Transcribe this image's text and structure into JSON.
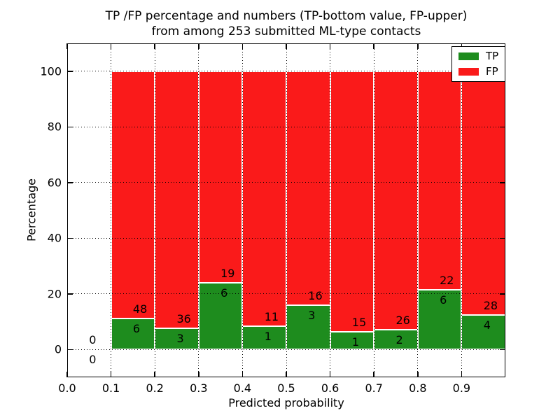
{
  "figure": {
    "title_line1": "TP /FP percentage and numbers (TP-bottom value, FP-upper)",
    "title_line2": "from among 253 submitted ML-type contacts",
    "xlabel": "Predicted probability",
    "ylabel": "Percentage"
  },
  "legend": {
    "position": "upper-right",
    "items": [
      {
        "label": "TP",
        "color": "#1e8c1e"
      },
      {
        "label": "FP",
        "color": "#fa1a1a"
      }
    ]
  },
  "colors": {
    "tp": "#1e8c1e",
    "fp": "#fa1a1a",
    "bar_edge": "#ffffff",
    "grid": "#000000",
    "background": "#ffffff"
  },
  "chart_data": {
    "type": "bar",
    "stacked": true,
    "normalized_to": 100,
    "title": "TP /FP percentage and numbers (TP-bottom value, FP-upper) from among 253 submitted ML-type contacts",
    "xlabel": "Predicted probability",
    "ylabel": "Percentage",
    "total_contacts": 253,
    "xlim": [
      0.0,
      1.0
    ],
    "ylim": [
      -10,
      110
    ],
    "xticks": [
      "0.0",
      "0.1",
      "0.2",
      "0.3",
      "0.4",
      "0.5",
      "0.6",
      "0.7",
      "0.8",
      "0.9"
    ],
    "yticks": [
      0,
      20,
      40,
      60,
      80,
      100
    ],
    "grid": true,
    "grid_style": "dotted-black-over-bars",
    "legend_position": "upper-right",
    "bins": [
      {
        "x0": 0.0,
        "x1": 0.1,
        "tp_count": 0,
        "fp_count": 0,
        "tp_pct": 0,
        "fp_pct": 0,
        "has_bar": false
      },
      {
        "x0": 0.1,
        "x1": 0.2,
        "tp_count": 6,
        "fp_count": 48,
        "tp_pct": 11.11,
        "fp_pct": 88.89,
        "has_bar": true
      },
      {
        "x0": 0.2,
        "x1": 0.3,
        "tp_count": 3,
        "fp_count": 36,
        "tp_pct": 7.69,
        "fp_pct": 92.31,
        "has_bar": true
      },
      {
        "x0": 0.3,
        "x1": 0.4,
        "tp_count": 6,
        "fp_count": 19,
        "tp_pct": 24.0,
        "fp_pct": 76.0,
        "has_bar": true
      },
      {
        "x0": 0.4,
        "x1": 0.5,
        "tp_count": 1,
        "fp_count": 11,
        "tp_pct": 8.33,
        "fp_pct": 91.67,
        "has_bar": true
      },
      {
        "x0": 0.5,
        "x1": 0.6,
        "tp_count": 3,
        "fp_count": 16,
        "tp_pct": 15.79,
        "fp_pct": 84.21,
        "has_bar": true
      },
      {
        "x0": 0.6,
        "x1": 0.7,
        "tp_count": 1,
        "fp_count": 15,
        "tp_pct": 6.25,
        "fp_pct": 93.75,
        "has_bar": true
      },
      {
        "x0": 0.7,
        "x1": 0.8,
        "tp_count": 2,
        "fp_count": 26,
        "tp_pct": 7.14,
        "fp_pct": 92.86,
        "has_bar": true
      },
      {
        "x0": 0.8,
        "x1": 0.9,
        "tp_count": 6,
        "fp_count": 22,
        "tp_pct": 21.43,
        "fp_pct": 78.57,
        "has_bar": true
      },
      {
        "x0": 0.9,
        "x1": 1.0,
        "tp_count": 4,
        "fp_count": 28,
        "tp_pct": 12.5,
        "fp_pct": 87.5,
        "has_bar": true
      }
    ]
  }
}
